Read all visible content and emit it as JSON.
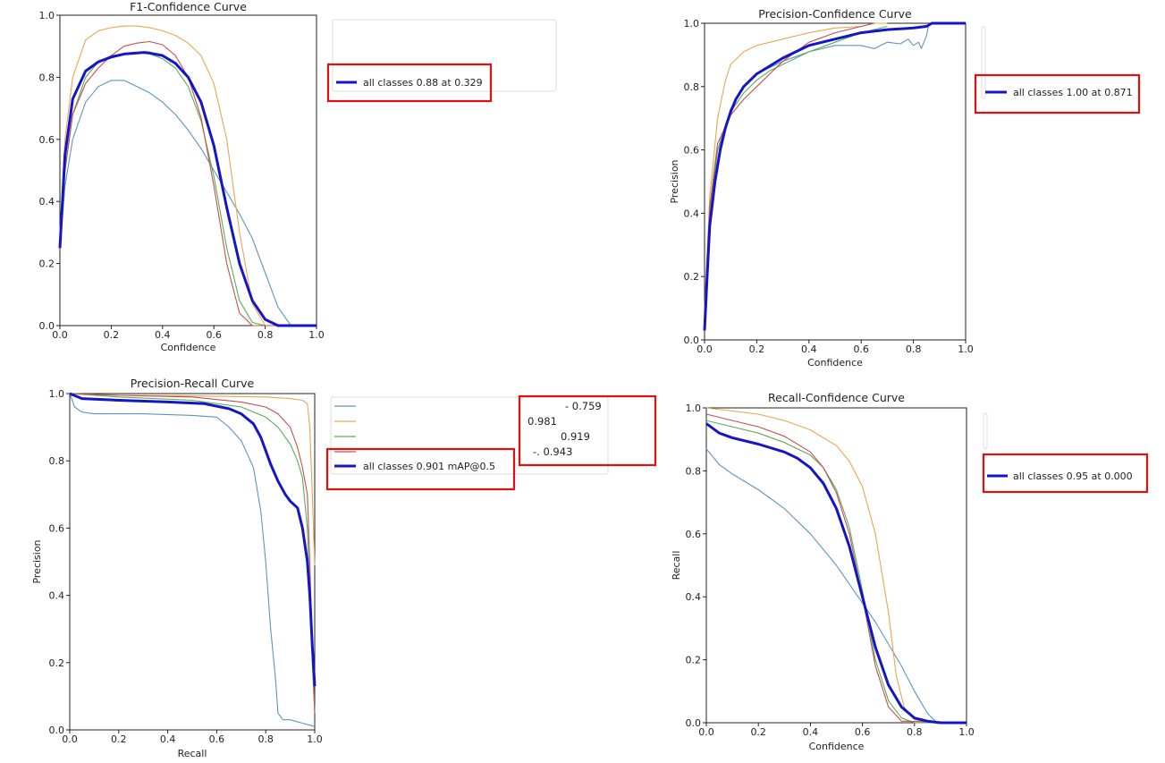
{
  "colors": {
    "all": "#1515c8",
    "c1": "#5b96be",
    "c2": "#e8a64f",
    "c3": "#5aad55",
    "c4": "#c4504e",
    "highlight": "#e01010"
  },
  "chart_data": [
    {
      "id": "f1",
      "type": "line",
      "title": "F1-Confidence Curve",
      "xlabel": "Confidence",
      "ylabel": "",
      "xlim": [
        0,
        1
      ],
      "ylim": [
        0,
        1
      ],
      "xticks": [
        "0.0",
        "0.2",
        "0.4",
        "0.6",
        "0.8",
        "1.0"
      ],
      "yticks": [
        "0.0",
        "0.2",
        "0.4",
        "0.6",
        "0.8",
        "1.0"
      ],
      "legend": {
        "placement": "right",
        "entries": [
          {
            "label": "all classes 0.88 at 0.329",
            "series": "all"
          }
        ]
      },
      "series": [
        {
          "name": "c1",
          "x": [
            0,
            0.02,
            0.05,
            0.1,
            0.15,
            0.2,
            0.25,
            0.3,
            0.35,
            0.4,
            0.45,
            0.5,
            0.55,
            0.6,
            0.65,
            0.7,
            0.75,
            0.8,
            0.85,
            0.9,
            0.95,
            1.0
          ],
          "y": [
            0.25,
            0.45,
            0.6,
            0.72,
            0.77,
            0.79,
            0.79,
            0.77,
            0.75,
            0.72,
            0.68,
            0.63,
            0.57,
            0.5,
            0.43,
            0.36,
            0.28,
            0.17,
            0.06,
            0.0,
            0.0,
            0.0
          ]
        },
        {
          "name": "c2",
          "x": [
            0,
            0.02,
            0.05,
            0.1,
            0.15,
            0.2,
            0.25,
            0.3,
            0.35,
            0.4,
            0.45,
            0.5,
            0.55,
            0.6,
            0.65,
            0.7,
            0.75,
            0.8,
            0.85,
            0.9,
            1.0
          ],
          "y": [
            0.3,
            0.6,
            0.8,
            0.92,
            0.95,
            0.96,
            0.965,
            0.965,
            0.96,
            0.95,
            0.935,
            0.91,
            0.87,
            0.78,
            0.6,
            0.3,
            0.07,
            0.0,
            0.0,
            0.0,
            0.0
          ]
        },
        {
          "name": "c3",
          "x": [
            0,
            0.02,
            0.05,
            0.1,
            0.15,
            0.2,
            0.25,
            0.3,
            0.35,
            0.4,
            0.45,
            0.5,
            0.55,
            0.6,
            0.65,
            0.7,
            0.75,
            0.8,
            0.85,
            1.0
          ],
          "y": [
            0.25,
            0.5,
            0.68,
            0.8,
            0.85,
            0.87,
            0.875,
            0.88,
            0.875,
            0.86,
            0.83,
            0.77,
            0.66,
            0.48,
            0.25,
            0.08,
            0.01,
            0.0,
            0.0,
            0.0
          ]
        },
        {
          "name": "c4",
          "x": [
            0,
            0.02,
            0.05,
            0.1,
            0.15,
            0.2,
            0.25,
            0.3,
            0.35,
            0.4,
            0.45,
            0.5,
            0.55,
            0.6,
            0.65,
            0.7,
            0.75,
            0.8,
            1.0
          ],
          "y": [
            0.25,
            0.5,
            0.68,
            0.78,
            0.83,
            0.87,
            0.9,
            0.91,
            0.915,
            0.905,
            0.87,
            0.8,
            0.67,
            0.45,
            0.2,
            0.04,
            0.0,
            0.0,
            0.0
          ]
        },
        {
          "name": "all",
          "x": [
            0,
            0.02,
            0.05,
            0.1,
            0.15,
            0.2,
            0.25,
            0.3,
            0.329,
            0.35,
            0.4,
            0.45,
            0.5,
            0.55,
            0.6,
            0.65,
            0.7,
            0.75,
            0.8,
            0.85,
            0.9,
            1.0
          ],
          "y": [
            0.25,
            0.55,
            0.73,
            0.82,
            0.85,
            0.865,
            0.875,
            0.878,
            0.88,
            0.878,
            0.87,
            0.845,
            0.8,
            0.72,
            0.58,
            0.38,
            0.2,
            0.08,
            0.02,
            0.0,
            0.0,
            0.0
          ]
        }
      ]
    },
    {
      "id": "pc",
      "type": "line",
      "title": "Precision-Confidence Curve",
      "xlabel": "Confidence",
      "ylabel": "Precision",
      "xlim": [
        0,
        1
      ],
      "ylim": [
        0,
        1
      ],
      "xticks": [
        "0.0",
        "0.2",
        "0.4",
        "0.6",
        "0.8",
        "1.0"
      ],
      "yticks": [
        "0.0",
        "0.2",
        "0.4",
        "0.6",
        "0.8",
        "1.0"
      ],
      "legend": {
        "placement": "right",
        "entries": [
          {
            "label": "all classes 1.00 at 0.871",
            "series": "all"
          }
        ]
      },
      "series": [
        {
          "name": "c1",
          "x": [
            0,
            0.02,
            0.05,
            0.1,
            0.15,
            0.2,
            0.3,
            0.4,
            0.5,
            0.6,
            0.65,
            0.7,
            0.75,
            0.78,
            0.8,
            0.82,
            0.83,
            0.85,
            0.86
          ],
          "y": [
            0.05,
            0.4,
            0.6,
            0.73,
            0.8,
            0.84,
            0.88,
            0.91,
            0.93,
            0.93,
            0.92,
            0.94,
            0.935,
            0.95,
            0.93,
            0.94,
            0.92,
            0.96,
            1.0
          ]
        },
        {
          "name": "c2",
          "x": [
            0,
            0.02,
            0.05,
            0.08,
            0.1,
            0.15,
            0.2,
            0.3,
            0.4,
            0.5,
            0.6,
            0.65,
            0.7
          ],
          "y": [
            0.1,
            0.45,
            0.7,
            0.82,
            0.87,
            0.91,
            0.93,
            0.95,
            0.97,
            0.985,
            0.99,
            1.0,
            1.0
          ]
        },
        {
          "name": "c3",
          "x": [
            0,
            0.02,
            0.05,
            0.1,
            0.15,
            0.2,
            0.25,
            0.3,
            0.4,
            0.5,
            0.6,
            0.7
          ],
          "y": [
            0.05,
            0.4,
            0.6,
            0.72,
            0.78,
            0.82,
            0.85,
            0.87,
            0.91,
            0.94,
            0.97,
            0.99
          ]
        },
        {
          "name": "c4",
          "x": [
            0,
            0.02,
            0.05,
            0.1,
            0.15,
            0.2,
            0.25,
            0.3,
            0.4,
            0.5,
            0.6,
            0.65
          ],
          "y": [
            0.05,
            0.42,
            0.62,
            0.71,
            0.76,
            0.8,
            0.84,
            0.88,
            0.94,
            0.97,
            0.99,
            1.0
          ]
        },
        {
          "name": "all",
          "x": [
            0,
            0.01,
            0.02,
            0.04,
            0.06,
            0.08,
            0.1,
            0.12,
            0.15,
            0.2,
            0.3,
            0.4,
            0.5,
            0.6,
            0.7,
            0.8,
            0.85,
            0.871,
            1.0
          ],
          "y": [
            0.03,
            0.2,
            0.36,
            0.5,
            0.6,
            0.67,
            0.72,
            0.76,
            0.8,
            0.84,
            0.89,
            0.93,
            0.95,
            0.97,
            0.98,
            0.985,
            0.99,
            1.0,
            1.0
          ]
        }
      ]
    },
    {
      "id": "pr",
      "type": "line",
      "title": "Precision-Recall Curve",
      "xlabel": "Recall",
      "ylabel": "Precision",
      "xlim": [
        0,
        1
      ],
      "ylim": [
        0,
        1
      ],
      "xticks": [
        "0.0",
        "0.2",
        "0.4",
        "0.6",
        "0.8",
        "1.0"
      ],
      "yticks": [
        "0.0",
        "0.2",
        "0.4",
        "0.6",
        "0.8",
        "1.0"
      ],
      "legend": {
        "placement": "right",
        "entries": [
          {
            "label": "- 0.759",
            "series": "c1"
          },
          {
            "label": "0.981",
            "series": "c2"
          },
          {
            "label": "0.919",
            "series": "c3"
          },
          {
            "label": "-. 0.943",
            "series": "c4"
          },
          {
            "label": "all classes 0.901 mAP@0.5",
            "series": "all"
          }
        ]
      },
      "series": [
        {
          "name": "c1",
          "x": [
            0,
            0.02,
            0.05,
            0.1,
            0.3,
            0.5,
            0.6,
            0.65,
            0.7,
            0.75,
            0.78,
            0.8,
            0.82,
            0.84,
            0.85,
            0.87,
            0.9,
            0.95,
            1.0
          ],
          "y": [
            1.0,
            0.96,
            0.945,
            0.94,
            0.94,
            0.935,
            0.93,
            0.9,
            0.86,
            0.78,
            0.65,
            0.5,
            0.3,
            0.15,
            0.05,
            0.03,
            0.03,
            0.02,
            0.01
          ]
        },
        {
          "name": "c2",
          "x": [
            0,
            0.2,
            0.5,
            0.8,
            0.9,
            0.95,
            0.97,
            0.98,
            0.99,
            1.0
          ],
          "y": [
            1.0,
            0.995,
            0.993,
            0.99,
            0.985,
            0.98,
            0.97,
            0.9,
            0.7,
            0.49
          ]
        },
        {
          "name": "c3",
          "x": [
            0,
            0.2,
            0.5,
            0.7,
            0.8,
            0.85,
            0.9,
            0.93,
            0.95,
            0.97,
            0.98,
            0.99,
            1.0
          ],
          "y": [
            1.0,
            0.99,
            0.98,
            0.96,
            0.93,
            0.9,
            0.85,
            0.8,
            0.75,
            0.6,
            0.4,
            0.2,
            0.05
          ]
        },
        {
          "name": "c4",
          "x": [
            0,
            0.2,
            0.5,
            0.7,
            0.8,
            0.85,
            0.9,
            0.93,
            0.95,
            0.97,
            0.98,
            0.99,
            1.0
          ],
          "y": [
            1.0,
            0.995,
            0.99,
            0.975,
            0.96,
            0.94,
            0.9,
            0.84,
            0.78,
            0.7,
            0.5,
            0.25,
            0.05
          ]
        },
        {
          "name": "all",
          "x": [
            0,
            0.05,
            0.2,
            0.4,
            0.55,
            0.65,
            0.7,
            0.75,
            0.78,
            0.8,
            0.82,
            0.85,
            0.88,
            0.9,
            0.93,
            0.95,
            0.97,
            0.98,
            0.99,
            1.0
          ],
          "y": [
            1.0,
            0.985,
            0.98,
            0.975,
            0.97,
            0.955,
            0.94,
            0.91,
            0.87,
            0.83,
            0.79,
            0.74,
            0.7,
            0.68,
            0.66,
            0.6,
            0.5,
            0.4,
            0.25,
            0.13
          ]
        }
      ]
    },
    {
      "id": "rc",
      "type": "line",
      "title": "Recall-Confidence Curve",
      "xlabel": "Confidence",
      "ylabel": "Recall",
      "xlim": [
        0,
        1
      ],
      "ylim": [
        0,
        1
      ],
      "xticks": [
        "0.0",
        "0.2",
        "0.4",
        "0.6",
        "0.8",
        "1.0"
      ],
      "yticks": [
        "0.0",
        "0.2",
        "0.4",
        "0.6",
        "0.8",
        "1.0"
      ],
      "legend": {
        "placement": "right",
        "entries": [
          {
            "label": "all classes 0.95 at 0.000",
            "series": "all"
          }
        ]
      },
      "series": [
        {
          "name": "c1",
          "x": [
            0,
            0.05,
            0.1,
            0.2,
            0.3,
            0.4,
            0.5,
            0.55,
            0.6,
            0.65,
            0.7,
            0.75,
            0.8,
            0.85,
            0.88,
            0.9,
            1.0
          ],
          "y": [
            0.87,
            0.82,
            0.79,
            0.74,
            0.68,
            0.6,
            0.5,
            0.44,
            0.38,
            0.32,
            0.25,
            0.18,
            0.1,
            0.03,
            0.005,
            0.0,
            0.0
          ]
        },
        {
          "name": "c2",
          "x": [
            0,
            0.1,
            0.2,
            0.3,
            0.4,
            0.5,
            0.55,
            0.6,
            0.65,
            0.7,
            0.73,
            0.76,
            0.8,
            0.85,
            1.0
          ],
          "y": [
            1.0,
            0.99,
            0.98,
            0.96,
            0.93,
            0.88,
            0.83,
            0.75,
            0.6,
            0.35,
            0.15,
            0.05,
            0.01,
            0.0,
            0.0
          ]
        },
        {
          "name": "c3",
          "x": [
            0,
            0.1,
            0.2,
            0.3,
            0.4,
            0.45,
            0.5,
            0.55,
            0.6,
            0.65,
            0.7,
            0.75,
            0.8,
            1.0
          ],
          "y": [
            0.96,
            0.94,
            0.92,
            0.89,
            0.85,
            0.81,
            0.74,
            0.62,
            0.42,
            0.2,
            0.07,
            0.015,
            0.0,
            0.0
          ]
        },
        {
          "name": "c4",
          "x": [
            0,
            0.1,
            0.2,
            0.3,
            0.4,
            0.45,
            0.5,
            0.55,
            0.6,
            0.65,
            0.7,
            0.75,
            1.0
          ],
          "y": [
            0.98,
            0.96,
            0.94,
            0.91,
            0.86,
            0.81,
            0.73,
            0.6,
            0.4,
            0.18,
            0.05,
            0.005,
            0.0
          ]
        },
        {
          "name": "all",
          "x": [
            0,
            0.05,
            0.1,
            0.2,
            0.3,
            0.35,
            0.4,
            0.45,
            0.5,
            0.55,
            0.6,
            0.65,
            0.7,
            0.75,
            0.8,
            0.85,
            0.9,
            1.0
          ],
          "y": [
            0.95,
            0.92,
            0.905,
            0.885,
            0.86,
            0.84,
            0.81,
            0.76,
            0.68,
            0.56,
            0.4,
            0.24,
            0.12,
            0.05,
            0.015,
            0.005,
            0.0,
            0.0
          ]
        }
      ]
    }
  ]
}
